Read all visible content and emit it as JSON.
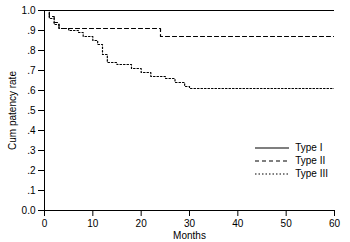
{
  "chart_data": {
    "type": "line",
    "x_label": "Months",
    "y_label": "Cum patency rate",
    "xlim": [
      0,
      60
    ],
    "xticks": [
      0,
      10,
      20,
      30,
      40,
      50,
      60
    ],
    "ylim": [
      0,
      1
    ],
    "yticks": [
      {
        "value": 0,
        "label": "0.0"
      },
      {
        "value": 0.1,
        "label": ".1"
      },
      {
        "value": 0.2,
        "label": ".2"
      },
      {
        "value": 0.3,
        "label": ".3"
      },
      {
        "value": 0.4,
        "label": ".4"
      },
      {
        "value": 0.5,
        "label": ".5"
      },
      {
        "value": 0.6,
        "label": ".6"
      },
      {
        "value": 0.7,
        "label": ".7"
      },
      {
        "value": 0.8,
        "label": ".8"
      },
      {
        "value": 0.9,
        "label": ".9"
      },
      {
        "value": 1,
        "label": "1.0"
      }
    ],
    "legend": "lower right",
    "series": [
      {
        "name": "Type I",
        "color": "#000000",
        "line_style": "solid",
        "x": [
          0,
          60
        ],
        "values": [
          1.0,
          1.0
        ]
      },
      {
        "name": "Type II",
        "color": "#000000",
        "line_style": "dashed",
        "x": [
          0,
          1,
          2,
          3,
          24,
          60
        ],
        "values": [
          1.0,
          0.97,
          0.94,
          0.91,
          0.87,
          0.87
        ]
      },
      {
        "name": "Type III",
        "color": "#000000",
        "line_style": "dotted",
        "x": [
          0,
          1,
          2,
          3,
          5,
          7,
          8,
          10,
          11,
          12,
          13,
          15,
          18,
          20,
          22,
          25,
          27,
          29,
          30,
          60
        ],
        "values": [
          1.0,
          0.96,
          0.93,
          0.91,
          0.9,
          0.89,
          0.87,
          0.85,
          0.83,
          0.78,
          0.74,
          0.73,
          0.71,
          0.69,
          0.67,
          0.66,
          0.64,
          0.62,
          0.61,
          0.61
        ]
      }
    ]
  }
}
